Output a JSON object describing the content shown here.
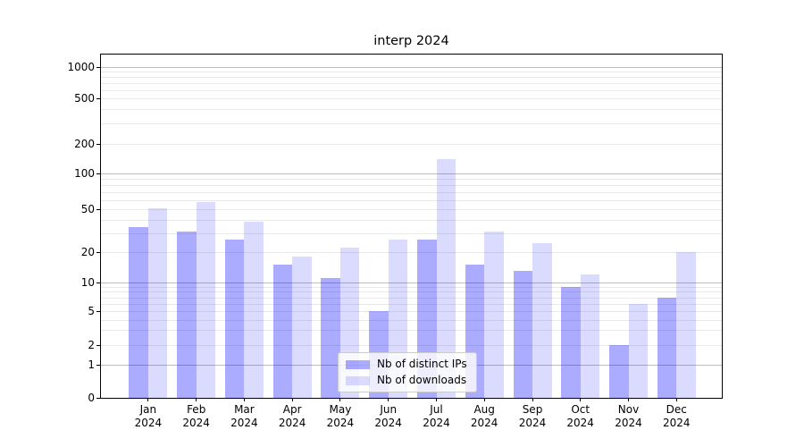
{
  "chart_data": {
    "type": "bar",
    "title": "interp 2024",
    "categories": [
      "Jan 2024",
      "Feb 2024",
      "Mar 2024",
      "Apr 2024",
      "May 2024",
      "Jun 2024",
      "Jul 2024",
      "Aug 2024",
      "Sep 2024",
      "Oct 2024",
      "Nov 2024",
      "Dec 2024"
    ],
    "months": [
      "Jan",
      "Feb",
      "Mar",
      "Apr",
      "May",
      "Jun",
      "Jul",
      "Aug",
      "Sep",
      "Oct",
      "Nov",
      "Dec"
    ],
    "year_label": "2024",
    "series": [
      {
        "name": "Nb of distinct IPs",
        "values": [
          34,
          31,
          26,
          15,
          11,
          5,
          26,
          15,
          13,
          9,
          2,
          7
        ],
        "color": "#0000ff",
        "alpha": 0.33
      },
      {
        "name": "Nb of downloads",
        "values": [
          51,
          58,
          38,
          18,
          22,
          26,
          140,
          31,
          24,
          12,
          6,
          20
        ],
        "color": "#0000ff",
        "alpha": 0.14
      }
    ],
    "yticks": [
      0,
      1,
      2,
      5,
      10,
      20,
      50,
      100,
      200,
      500,
      1000
    ],
    "ylim": [
      0,
      1500
    ],
    "yscale": "symlog-like (log above 1, compressed linear near 0)",
    "grid": {
      "horizontal_major": true,
      "horizontal_minor": true,
      "vertical": false
    },
    "legend_position": "lower center (inside plot)"
  },
  "colors": {
    "bar_distinct_ips_rendered": "#aaaaf8",
    "bar_downloads_rendered": "#dbddfb",
    "grid_major": "#bdbdbd",
    "grid_minor": "#e9e9e9",
    "axis_spine": "#000000",
    "background": "#ffffff",
    "legend_border": "#cccccc"
  }
}
